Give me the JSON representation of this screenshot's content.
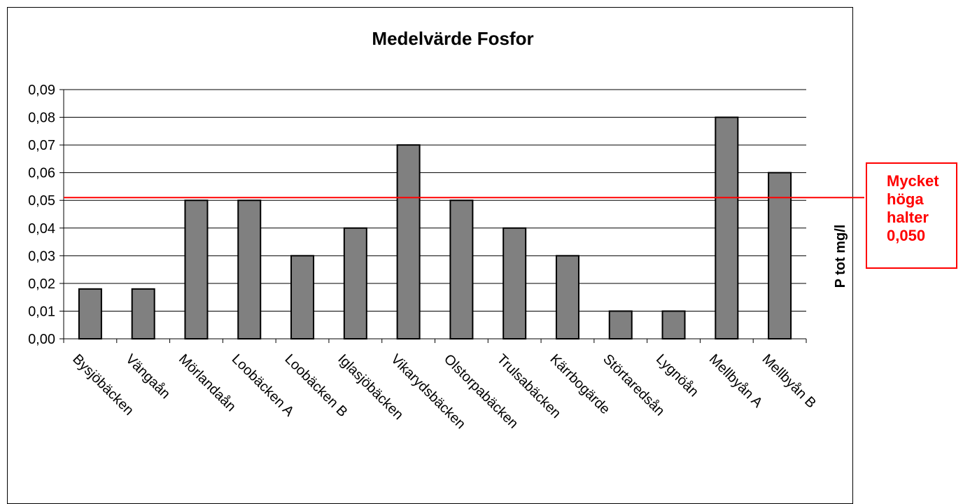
{
  "chart_data": {
    "type": "bar",
    "title": "Medelvärde Fosfor",
    "ylabel": "P tot mg/l",
    "ylim": [
      0,
      0.09
    ],
    "y_ticks": [
      "0,00",
      "0,01",
      "0,02",
      "0,03",
      "0,04",
      "0,05",
      "0,06",
      "0,07",
      "0,08",
      "0,09"
    ],
    "grid": true,
    "categories": [
      "Bysjöbäcken",
      "Vängaån",
      "Mörlandaån",
      "Loobäcken A",
      "Loobäcken B",
      "Iglasjöbäcken",
      "Vikarydsbäcken",
      "Olstorpabäcken",
      "Trulsabäcken",
      "Kärrbogärde",
      "Störtaredsån",
      "Lygnöån",
      "Mellbyån A",
      "Mellbyån B"
    ],
    "values": [
      0.018,
      0.018,
      0.05,
      0.05,
      0.03,
      0.04,
      0.07,
      0.05,
      0.04,
      0.03,
      0.01,
      0.01,
      0.08,
      0.06
    ],
    "bar_color": "#808080",
    "reference_line": {
      "value": 0.051,
      "color": "#ff0000"
    }
  },
  "annotation": {
    "lines": [
      "Mycket",
      "höga",
      "halter",
      "0,050"
    ],
    "color": "#ff0000"
  }
}
